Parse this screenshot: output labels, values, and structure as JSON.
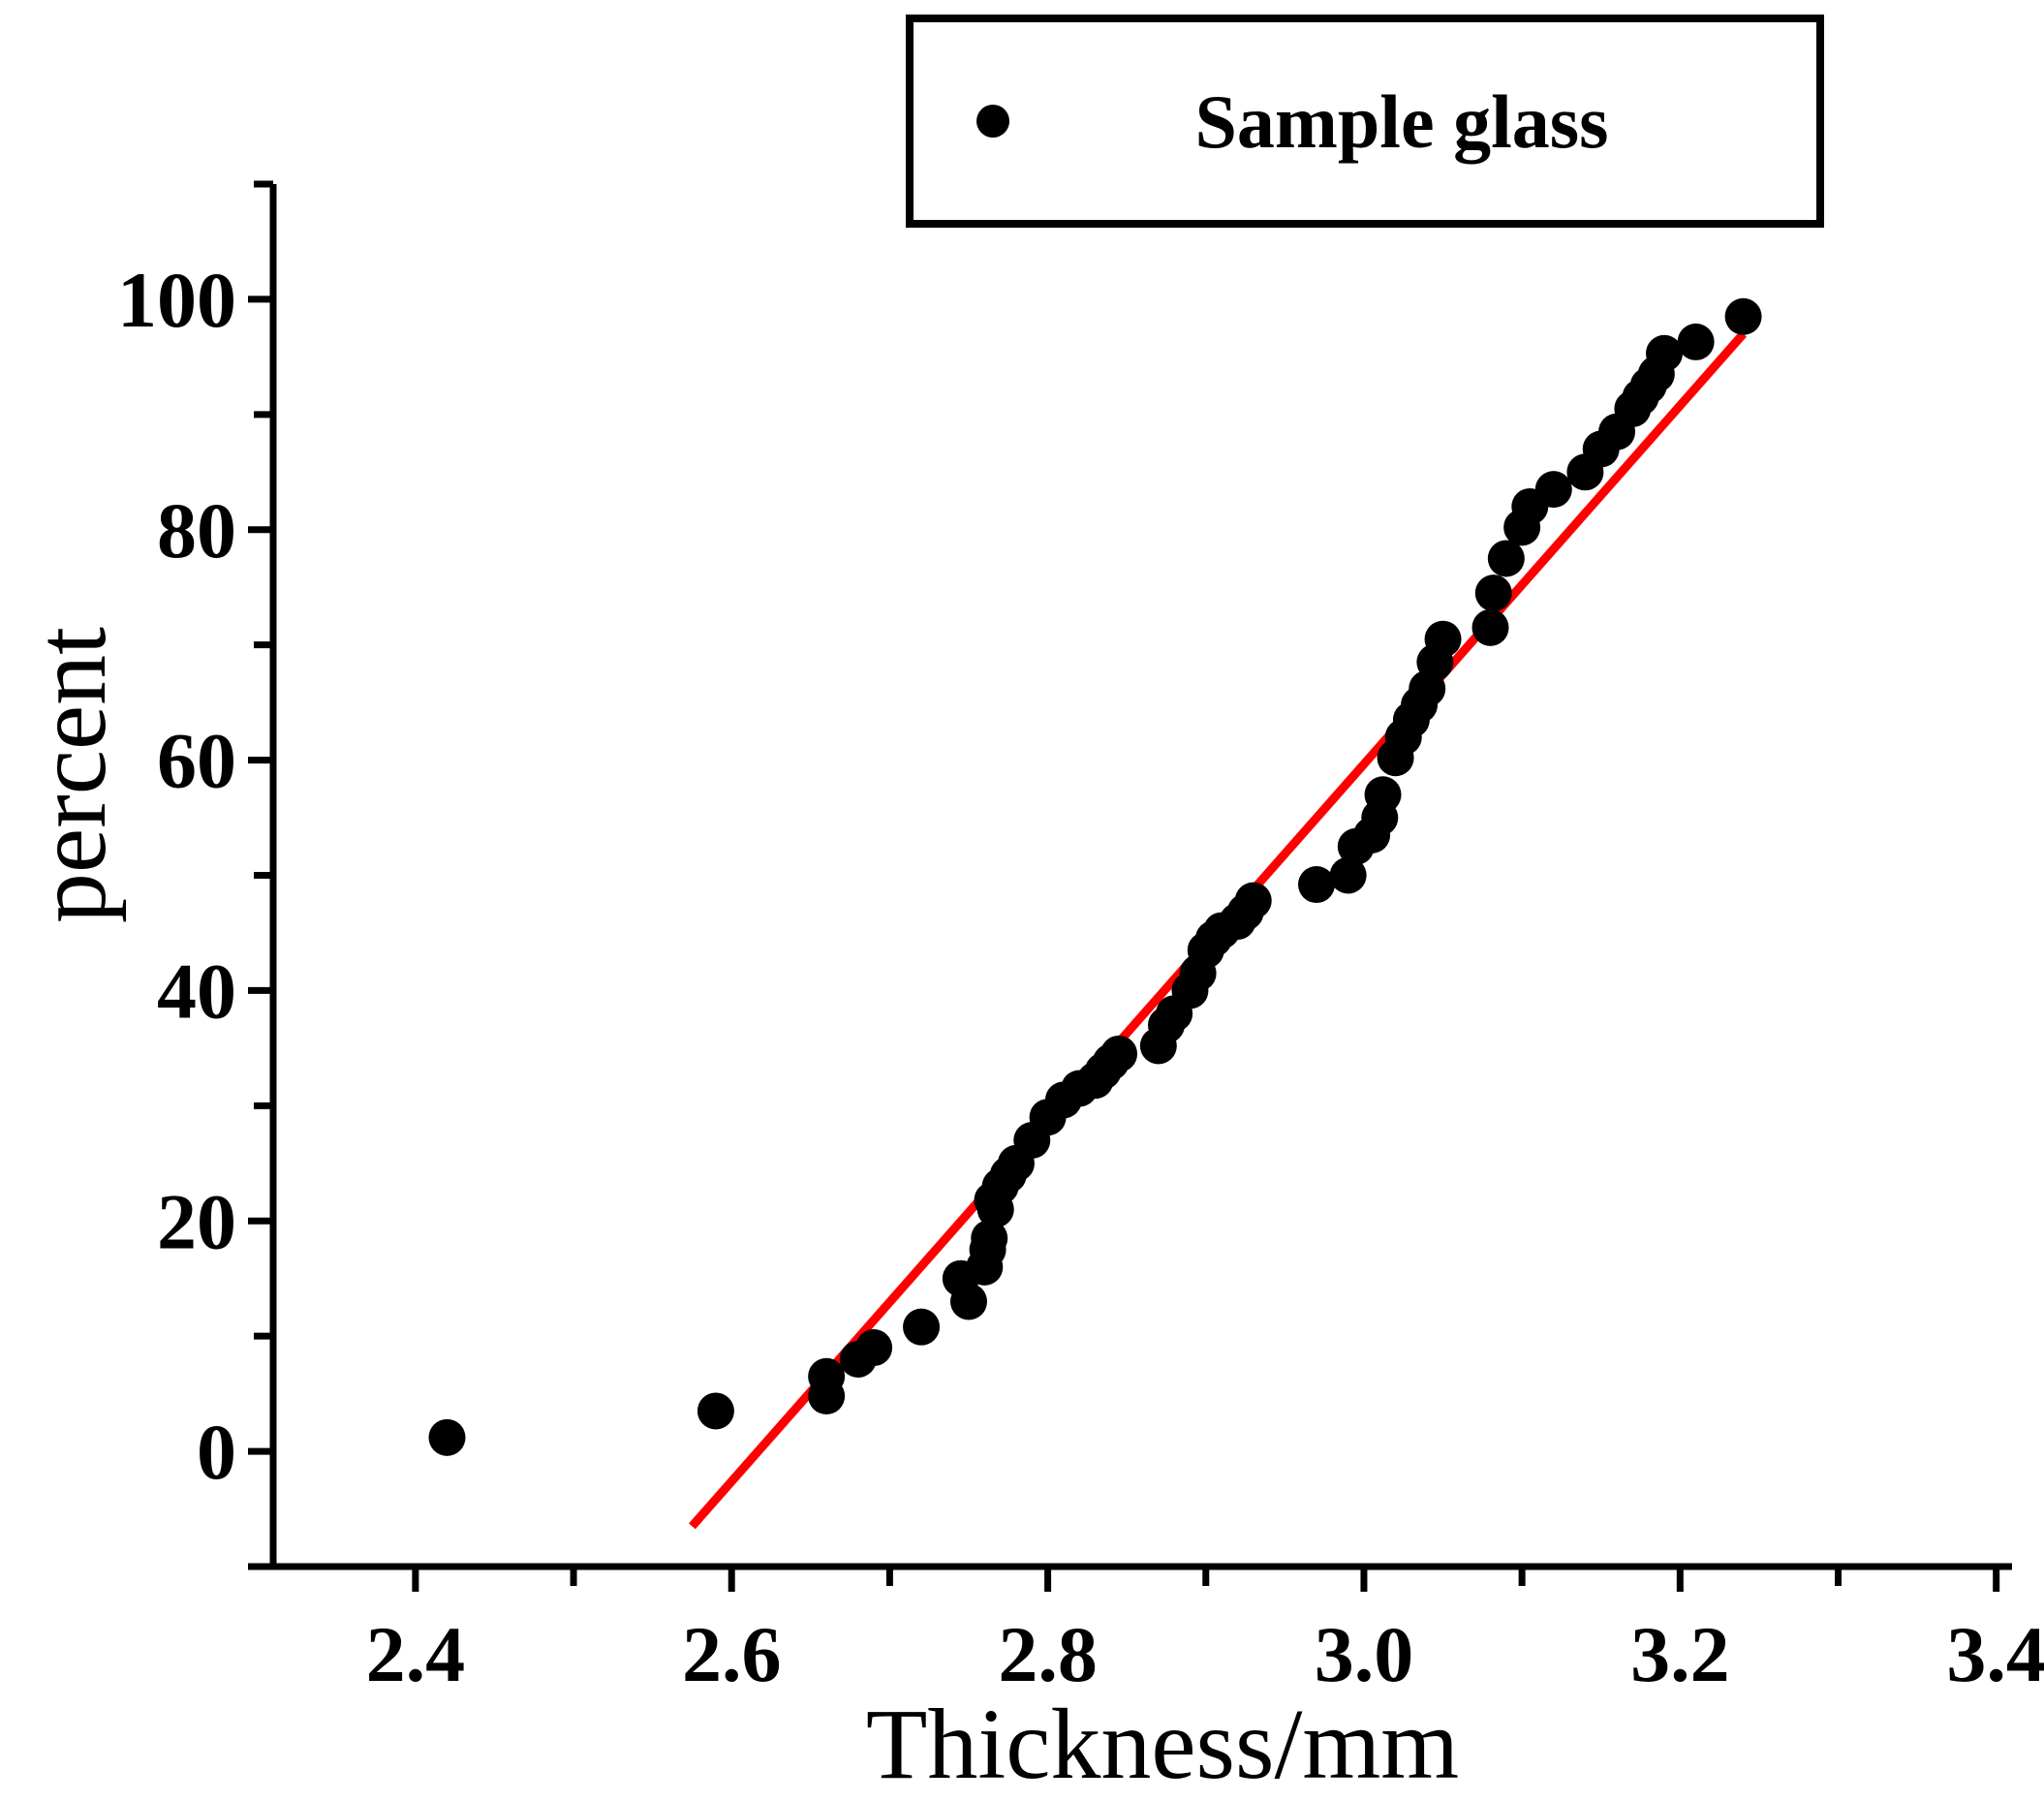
{
  "chart_data": {
    "type": "scatter",
    "title": "",
    "xlabel": "Thickness/mm",
    "ylabel": "percent",
    "xlim": [
      2.31,
      3.41
    ],
    "ylim": [
      -10,
      110
    ],
    "xticks": [
      2.4,
      2.5,
      2.6,
      2.7,
      2.8,
      2.9,
      3.0,
      3.1,
      3.2,
      3.3,
      3.4
    ],
    "xtick_labels": [
      "2.4",
      "2.6",
      "2.8",
      "3.0",
      "3.2",
      "3.4"
    ],
    "xtick_label_values": [
      2.4,
      2.6,
      2.8,
      3.0,
      3.2,
      3.4
    ],
    "yticks": [
      -10,
      0,
      10,
      20,
      30,
      40,
      50,
      60,
      70,
      80,
      90,
      100,
      110
    ],
    "ytick_labels": [
      "0",
      "20",
      "40",
      "60",
      "80",
      "100"
    ],
    "ytick_label_values": [
      0,
      20,
      40,
      60,
      80,
      100
    ],
    "grid": false,
    "legend_position": "top-right",
    "series": [
      {
        "name": "Sample glass",
        "marker": "circle",
        "color": "#000000",
        "x": [
          2.42,
          2.59,
          2.66,
          2.66,
          2.68,
          2.69,
          2.72,
          2.745,
          2.75,
          2.76,
          2.762,
          2.763,
          2.765,
          2.767,
          2.77,
          2.775,
          2.78,
          2.79,
          2.8,
          2.81,
          2.82,
          2.83,
          2.835,
          2.84,
          2.845,
          2.87,
          2.875,
          2.88,
          2.89,
          2.895,
          2.9,
          2.905,
          2.91,
          2.92,
          2.925,
          2.93,
          2.97,
          2.99,
          2.995,
          3.005,
          3.01,
          3.012,
          3.02,
          3.025,
          3.03,
          3.035,
          3.04,
          3.045,
          3.05,
          3.08,
          3.082,
          3.09,
          3.1,
          3.105,
          3.12,
          3.14,
          3.15,
          3.16,
          3.17,
          3.175,
          3.18,
          3.185,
          3.19,
          3.21,
          3.24
        ],
        "y": [
          1.2,
          3.5,
          4.8,
          6.5,
          8.0,
          9.0,
          10.8,
          15.0,
          13.0,
          16.0,
          17.5,
          18.5,
          21.8,
          21.0,
          23.0,
          24.0,
          25.0,
          27.0,
          29.0,
          30.5,
          31.5,
          32.2,
          33.0,
          33.8,
          34.5,
          35.2,
          37.0,
          38.0,
          40.0,
          41.5,
          43.5,
          44.5,
          45.2,
          46.0,
          46.8,
          47.8,
          49.2,
          50.0,
          52.5,
          53.5,
          55.0,
          57.0,
          60.2,
          62.0,
          63.5,
          64.8,
          66.2,
          68.5,
          70.5,
          71.5,
          74.5,
          77.5,
          80.2,
          82.0,
          83.5,
          85.0,
          87.0,
          88.5,
          90.5,
          91.5,
          92.5,
          93.5,
          95.3,
          96.3,
          98.5
        ]
      },
      {
        "name": "fit",
        "line_type": "linear-fit",
        "color": "#ff0000",
        "x": [
          2.575,
          3.24
        ],
        "y": [
          -6.5,
          97.0
        ]
      }
    ]
  }
}
